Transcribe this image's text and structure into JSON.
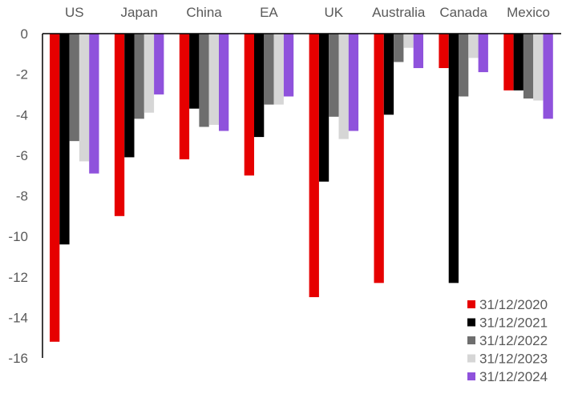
{
  "chart_data": {
    "type": "bar",
    "title": "",
    "xlabel": "",
    "ylabel": "",
    "categories": [
      "US",
      "Japan",
      "China",
      "EA",
      "UK",
      "Australia",
      "Canada",
      "Mexico"
    ],
    "ylim": [
      -16,
      0
    ],
    "yticks": [
      0,
      -2,
      -4,
      -6,
      -8,
      -10,
      -12,
      -14,
      -16
    ],
    "grid": false,
    "legend_position": "bottom-right",
    "series": [
      {
        "name": "31/12/2020",
        "color": "#e60000",
        "values": [
          -15.2,
          -9.0,
          -6.2,
          -7.0,
          -13.0,
          -12.3,
          -1.7,
          -2.8
        ]
      },
      {
        "name": "31/12/2021",
        "color": "#000000",
        "values": [
          -10.4,
          -6.1,
          -3.7,
          -5.1,
          -7.3,
          -4.0,
          -12.3,
          -2.8
        ]
      },
      {
        "name": "31/12/2022",
        "color": "#6e6e6e",
        "values": [
          -5.3,
          -4.2,
          -4.6,
          -3.5,
          -4.1,
          -1.4,
          -3.1,
          -3.2
        ]
      },
      {
        "name": "31/12/2023",
        "color": "#d6d6d6",
        "values": [
          -6.3,
          -3.9,
          -4.5,
          -3.5,
          -5.2,
          -0.7,
          -1.2,
          -3.3
        ]
      },
      {
        "name": "31/12/2024",
        "color": "#8f52dc",
        "values": [
          -6.9,
          -3.0,
          -4.8,
          -3.1,
          -4.8,
          -1.7,
          -1.9,
          -4.2
        ]
      }
    ]
  }
}
